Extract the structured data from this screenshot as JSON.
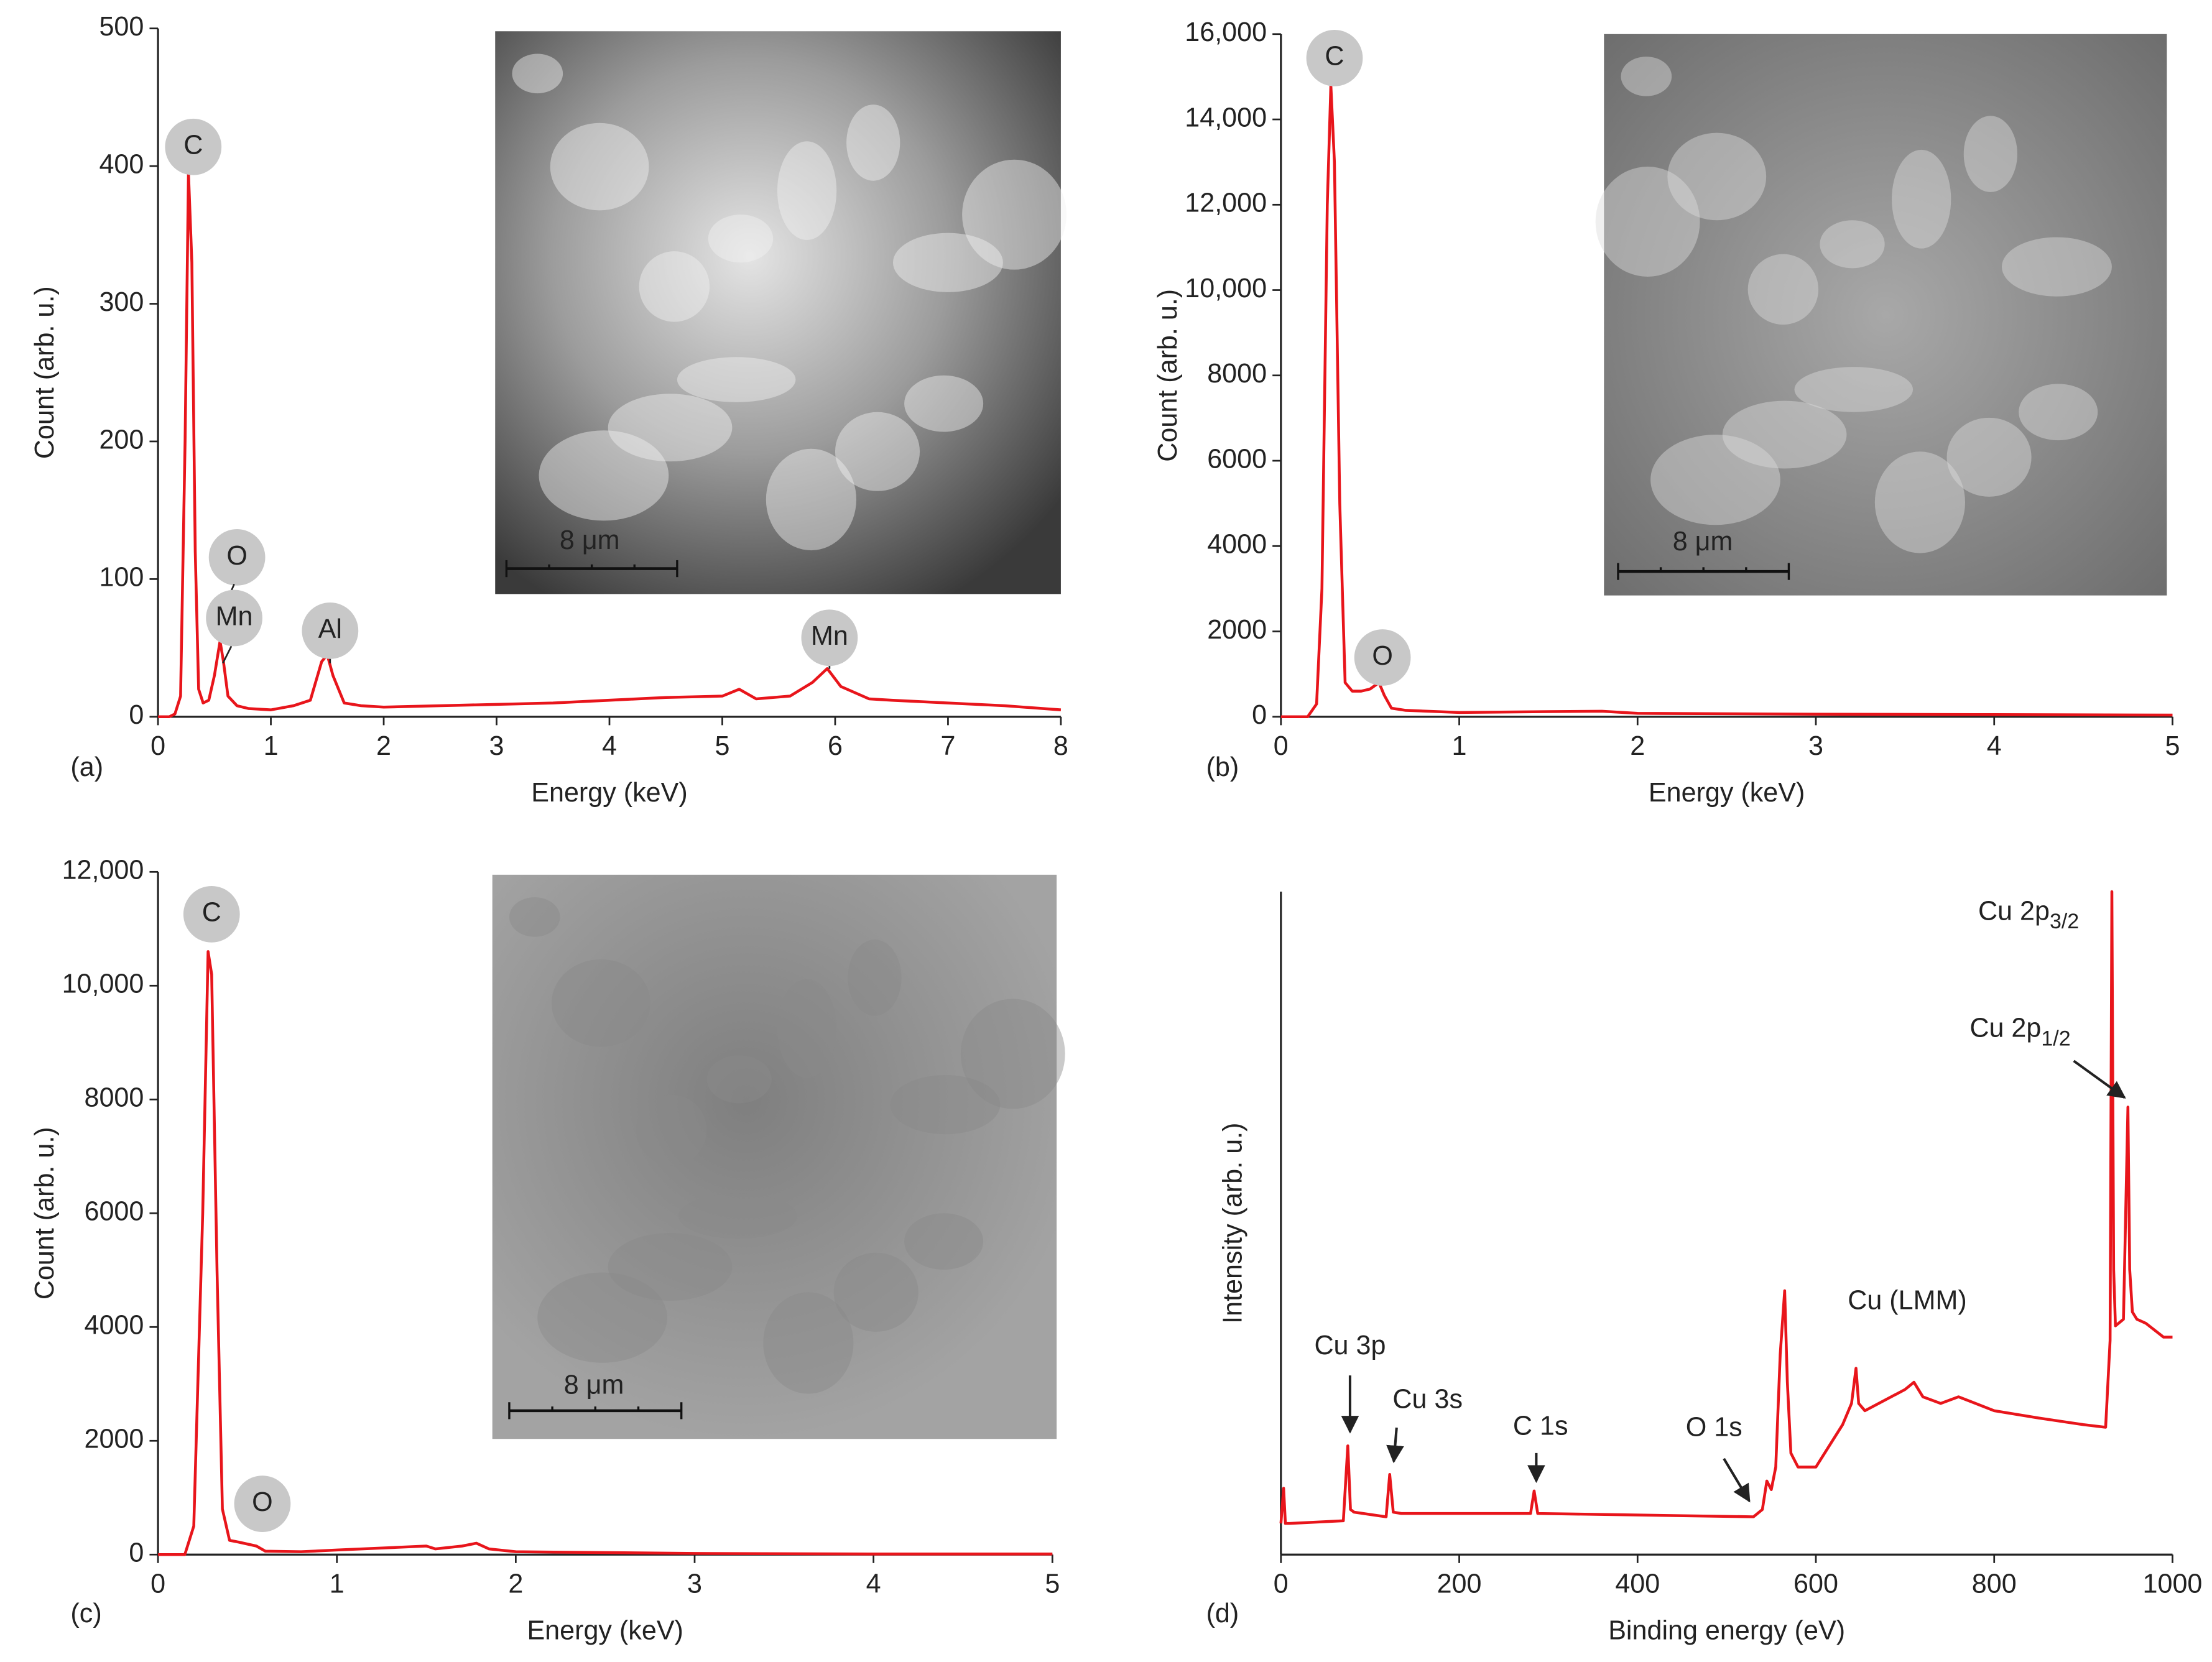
{
  "chart_data": [
    {
      "type": "line",
      "panel_label": "(a)",
      "xlabel": "Energy (keV)",
      "ylabel": "Count (arb. u.)",
      "xlim": [
        0,
        8
      ],
      "ylim": [
        0,
        500
      ],
      "xticks": [
        0,
        1,
        2,
        3,
        4,
        5,
        6,
        7,
        8
      ],
      "yticks": [
        0,
        100,
        200,
        300,
        400,
        500
      ],
      "color": "#e8151b",
      "x": [
        0,
        0.1,
        0.15,
        0.2,
        0.24,
        0.27,
        0.3,
        0.33,
        0.36,
        0.4,
        0.45,
        0.5,
        0.55,
        0.58,
        0.62,
        0.7,
        0.8,
        1.0,
        1.2,
        1.35,
        1.45,
        1.5,
        1.55,
        1.65,
        1.8,
        2.0,
        2.5,
        3,
        3.5,
        4,
        4.5,
        5,
        5.15,
        5.3,
        5.6,
        5.8,
        5.93,
        6.05,
        6.3,
        6.5,
        7,
        7.5,
        8
      ],
      "values": [
        0,
        0,
        2,
        15,
        200,
        395,
        330,
        120,
        20,
        10,
        12,
        30,
        55,
        40,
        15,
        8,
        6,
        5,
        8,
        12,
        40,
        45,
        30,
        10,
        8,
        7,
        8,
        9,
        10,
        12,
        14,
        15,
        20,
        13,
        15,
        25,
        35,
        22,
        13,
        12,
        10,
        8,
        5
      ],
      "annotations": [
        {
          "text": "C"
        },
        {
          "text": "O"
        },
        {
          "text": "Mn"
        },
        {
          "text": "Al"
        },
        {
          "text": "Mn"
        }
      ],
      "inset": {
        "scale_label": "8 μm"
      }
    },
    {
      "type": "line",
      "panel_label": "(b)",
      "xlabel": "Energy (keV)",
      "ylabel": "Count (arb. u.)",
      "xlim": [
        0,
        5
      ],
      "ylim": [
        0,
        16000
      ],
      "xticks": [
        0,
        1,
        2,
        3,
        4,
        5
      ],
      "yticks": [
        0,
        2000,
        4000,
        6000,
        8000,
        {
          "value": 10000,
          "label": "10,000"
        },
        {
          "value": 12000,
          "label": "12,000"
        },
        {
          "value": 14000,
          "label": "14,000"
        },
        {
          "value": 16000,
          "label": "16,000"
        }
      ],
      "color": "#e8151b",
      "x": [
        0,
        0.15,
        0.2,
        0.23,
        0.26,
        0.28,
        0.3,
        0.33,
        0.36,
        0.4,
        0.45,
        0.5,
        0.55,
        0.58,
        0.62,
        0.7,
        1.0,
        1.5,
        1.8,
        2,
        3,
        4,
        5
      ],
      "values": [
        0,
        0,
        300,
        3000,
        12000,
        14800,
        13000,
        5000,
        800,
        600,
        600,
        650,
        800,
        500,
        200,
        150,
        100,
        120,
        130,
        80,
        60,
        50,
        40
      ],
      "annotations": [
        {
          "text": "C"
        },
        {
          "text": "O"
        }
      ],
      "inset": {
        "scale_label": "8 μm"
      }
    },
    {
      "type": "line",
      "panel_label": "(c)",
      "xlabel": "Energy (keV)",
      "ylabel": "Count (arb. u.)",
      "xlim": [
        0,
        5
      ],
      "ylim": [
        0,
        12000
      ],
      "xticks": [
        0,
        1,
        2,
        3,
        4,
        5
      ],
      "yticks": [
        0,
        2000,
        4000,
        6000,
        8000,
        {
          "value": 10000,
          "label": "10,000"
        },
        {
          "value": 12000,
          "label": "12,000"
        }
      ],
      "color": "#e8151b",
      "x": [
        0,
        0.15,
        0.2,
        0.25,
        0.28,
        0.3,
        0.33,
        0.36,
        0.4,
        0.45,
        0.55,
        0.6,
        0.8,
        1,
        1.5,
        1.55,
        1.7,
        1.78,
        1.85,
        2,
        3,
        4,
        5
      ],
      "values": [
        0,
        0,
        500,
        6000,
        10600,
        10200,
        5000,
        800,
        250,
        220,
        150,
        60,
        50,
        80,
        150,
        100,
        150,
        200,
        100,
        50,
        20,
        10,
        10
      ],
      "annotations": [
        {
          "text": "C"
        },
        {
          "text": "O"
        }
      ],
      "inset": {
        "scale_label": "8 μm"
      }
    },
    {
      "type": "line",
      "panel_label": "(d)",
      "xlabel": "Binding energy (eV)",
      "ylabel": "Intensity (arb. u.)",
      "xlim": [
        0,
        1000
      ],
      "ylim": [
        0,
        100
      ],
      "xticks": [
        0,
        200,
        400,
        600,
        800,
        1000
      ],
      "color": "#e8151b",
      "x": [
        0,
        3,
        5,
        10,
        70,
        75,
        78,
        82,
        118,
        122,
        126,
        135,
        280,
        284,
        288,
        530,
        540,
        545,
        550,
        555,
        560,
        565,
        568,
        572,
        580,
        600,
        630,
        640,
        645,
        648,
        655,
        700,
        710,
        720,
        740,
        760,
        800,
        850,
        900,
        925,
        930,
        932,
        934,
        936,
        945,
        950,
        952,
        955,
        960,
        970,
        990,
        1000
      ],
      "values": [
        4.7,
        10,
        4.7,
        4.7,
        5.1,
        16.4,
        6.8,
        6.4,
        5.7,
        12.1,
        6.4,
        6.2,
        6.2,
        9.6,
        6.2,
        5.7,
        6.8,
        11.1,
        9.8,
        13.2,
        30.2,
        39.8,
        26,
        15.3,
        13.2,
        13.2,
        19.6,
        22.8,
        28.1,
        22.8,
        21.7,
        24.9,
        26,
        23.8,
        22.8,
        23.8,
        21.7,
        20.6,
        19.6,
        19.2,
        32.3,
        100,
        43,
        34.5,
        35.5,
        67.5,
        43,
        36.6,
        35.5,
        34.9,
        32.8,
        32.8
      ],
      "annotations": [
        {
          "text": "Cu 3p"
        },
        {
          "text": "Cu 3s"
        },
        {
          "text": "C 1s"
        },
        {
          "text": "O 1s"
        },
        {
          "text": "Cu (LMM)"
        },
        {
          "text": "Cu 2p",
          "sub": "3/2"
        },
        {
          "text": "Cu 2p",
          "sub": "1/2"
        }
      ]
    }
  ]
}
